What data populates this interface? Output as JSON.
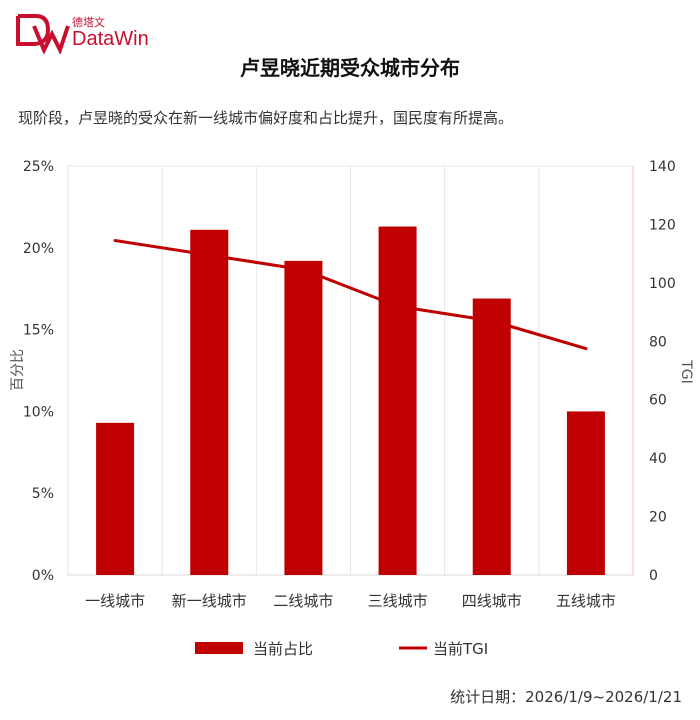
{
  "brand": {
    "name_cn": "德塔文",
    "name_en": "DataWin",
    "color": "#c8102e"
  },
  "title": "卢昱晓近期受众城市分布",
  "subtitle": "现阶段，卢昱晓的受众在新一线城市偏好度和占比提升，国民度有所提高。",
  "footer": {
    "date_range": "统计日期：2026/1/9~2026/1/21"
  },
  "chart_data": {
    "type": "bar",
    "categories": [
      "一线城市",
      "新一线城市",
      "二线城市",
      "三线城市",
      "四线城市",
      "五线城市"
    ],
    "series": [
      {
        "name": "当前占比",
        "type": "bar",
        "axis": "left",
        "values": [
          9.3,
          21.1,
          19.2,
          21.3,
          16.9,
          10.0
        ],
        "color": "#c00000"
      },
      {
        "name": "当前TGI",
        "type": "line",
        "axis": "right",
        "values": [
          114.5,
          109.5,
          104.5,
          92.0,
          87.0,
          77.5
        ],
        "color": "#c00000"
      }
    ],
    "ylabel": "百分比",
    "y2label": "TGI",
    "ylim": [
      0,
      25
    ],
    "y2lim": [
      0,
      140
    ],
    "yticks": [
      "0%",
      "5%",
      "10%",
      "15%",
      "20%",
      "25%"
    ],
    "y2ticks": [
      "0",
      "20",
      "40",
      "60",
      "80",
      "100",
      "120",
      "140"
    ],
    "legend_position": "bottom",
    "grid": true
  }
}
